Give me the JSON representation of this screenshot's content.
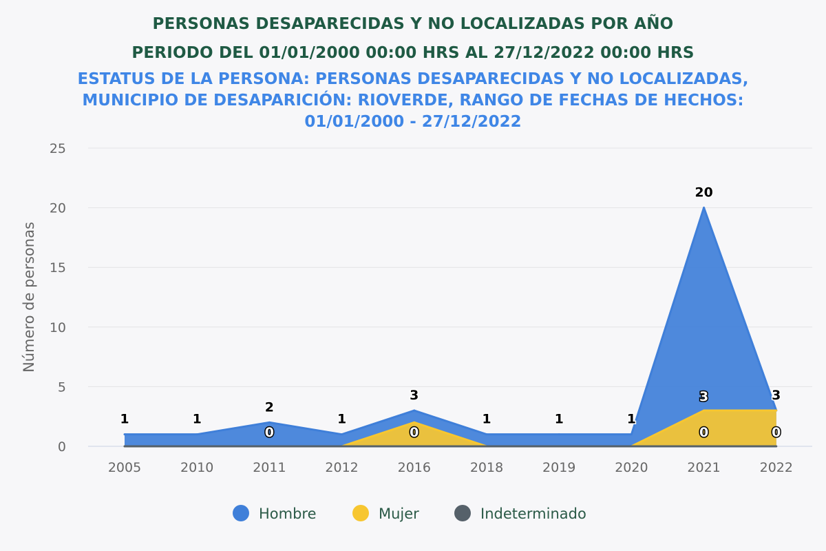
{
  "chart_data": {
    "type": "area",
    "title": "PERSONAS DESAPARECIDAS Y NO LOCALIZADAS POR AÑO",
    "title2": "PERIODO DEL 01/01/2000 00:00 HRS AL 27/12/2022 00:00 HRS",
    "subtitle": "ESTATUS DE LA PERSONA: PERSONAS DESAPARECIDAS Y NO LOCALIZADAS, MUNICIPIO DE DESAPARICIÓN: RIOVERDE, RANGO DE FECHAS DE HECHOS: 01/01/2000 - 27/12/2022",
    "xlabel": "",
    "ylabel": "Número de personas",
    "categories": [
      "2005",
      "2010",
      "2011",
      "2012",
      "2016",
      "2018",
      "2019",
      "2020",
      "2021",
      "2022"
    ],
    "ylim": [
      0,
      25
    ],
    "yticks": [
      0,
      5,
      10,
      15,
      20,
      25
    ],
    "grid": true,
    "legend_position": "bottom-center",
    "series": [
      {
        "name": "Hombre",
        "color": "#3f7fd9",
        "values": [
          1,
          1,
          2,
          1,
          3,
          1,
          1,
          1,
          20,
          3
        ]
      },
      {
        "name": "Mujer",
        "color": "#f7c630",
        "values": [
          0,
          0,
          0,
          0,
          2,
          0,
          0,
          0,
          3,
          3
        ]
      },
      {
        "name": "Indeterminado",
        "color": "#56616a",
        "values": [
          0,
          0,
          0,
          0,
          0,
          0,
          0,
          0,
          0,
          0
        ]
      }
    ],
    "data_labels": [
      {
        "series": "Hombre",
        "index": 0,
        "text": "1"
      },
      {
        "series": "Hombre",
        "index": 1,
        "text": "1"
      },
      {
        "series": "Hombre",
        "index": 2,
        "text": "2"
      },
      {
        "series": "Hombre",
        "index": 3,
        "text": "1"
      },
      {
        "series": "Hombre",
        "index": 4,
        "text": "3"
      },
      {
        "series": "Hombre",
        "index": 5,
        "text": "1"
      },
      {
        "series": "Hombre",
        "index": 6,
        "text": "1"
      },
      {
        "series": "Hombre",
        "index": 7,
        "text": "1"
      },
      {
        "series": "Hombre",
        "index": 8,
        "text": "20"
      },
      {
        "series": "Hombre",
        "index": 9,
        "text": "3"
      },
      {
        "series": "Mujer",
        "index": 8,
        "text": "3"
      },
      {
        "series": "Indeterminado",
        "index": 2,
        "text": "0"
      },
      {
        "series": "Indeterminado",
        "index": 4,
        "text": "0"
      },
      {
        "series": "Indeterminado",
        "index": 8,
        "text": "0"
      },
      {
        "series": "Indeterminado",
        "index": 9,
        "text": "0"
      }
    ]
  }
}
